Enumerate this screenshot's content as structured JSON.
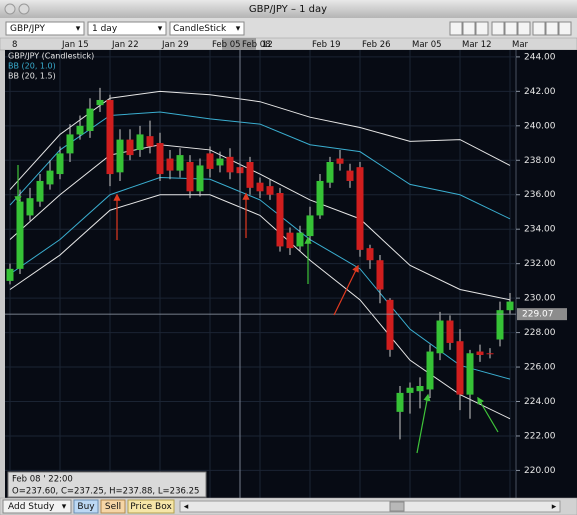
{
  "chart_data": {
    "type": "candlestick",
    "title": "GBP/JPY – 1 day",
    "series_name": "GBP/JPY (Candlestick)",
    "categories": [
      "8",
      null,
      null,
      null,
      null,
      "Jan 15",
      null,
      null,
      null,
      null,
      "Jan 22",
      null,
      null,
      null,
      null,
      "Jan 29",
      null,
      null,
      null,
      null,
      "Feb 05",
      null,
      null,
      "Feb 08",
      null,
      "12",
      null,
      null,
      null,
      null,
      "Feb 19",
      null,
      null,
      null,
      null,
      "Feb 26",
      null,
      null,
      null,
      null,
      "Mar 05",
      null,
      null,
      null,
      null,
      "Mar 12",
      null,
      null,
      null,
      null,
      "Mar"
    ],
    "open": [
      231.0,
      231.7,
      234.8,
      235.6,
      236.6,
      237.2,
      238.4,
      239.5,
      239.7,
      241.2,
      241.5,
      237.3,
      239.2,
      238.6,
      239.4,
      239.0,
      238.1,
      237.4,
      237.9,
      236.2,
      238.4,
      237.7,
      238.2,
      237.6,
      237.9,
      236.7,
      236.5,
      236.1,
      233.8,
      233.0,
      233.6,
      234.8,
      236.7,
      238.1,
      237.4,
      237.6,
      232.9,
      232.2,
      229.9,
      223.4,
      224.5,
      224.6,
      224.7,
      226.8,
      228.7,
      227.5,
      224.4,
      226.9,
      226.8,
      227.6,
      229.3
    ],
    "high": [
      232.0,
      236.3,
      236.4,
      237.2,
      238.0,
      238.8,
      240.1,
      240.6,
      241.6,
      242.2,
      241.8,
      239.8,
      239.8,
      240.0,
      240.3,
      239.6,
      238.6,
      238.7,
      238.3,
      238.1,
      238.8,
      238.5,
      238.7,
      237.88,
      238.2,
      237.0,
      236.9,
      236.4,
      234.1,
      234.2,
      235.3,
      237.2,
      238.2,
      238.6,
      237.8,
      237.9,
      233.1,
      232.5,
      230.0,
      224.9,
      225.1,
      225.4,
      227.3,
      229.2,
      229.0,
      228.2,
      227.0,
      227.3,
      227.1,
      229.8,
      230.3
    ],
    "low": [
      230.8,
      231.4,
      234.5,
      235.3,
      236.3,
      236.9,
      237.9,
      239.2,
      239.3,
      240.8,
      236.5,
      236.8,
      238.0,
      238.2,
      238.4,
      236.8,
      236.9,
      237.0,
      235.8,
      235.9,
      237.0,
      237.3,
      236.9,
      236.25,
      236.0,
      235.8,
      235.7,
      232.7,
      232.5,
      232.7,
      233.2,
      234.6,
      236.4,
      237.4,
      236.4,
      232.4,
      231.7,
      229.7,
      226.6,
      221.8,
      223.3,
      223.6,
      224.2,
      226.4,
      227.0,
      223.5,
      223.0,
      226.3,
      226.5,
      227.2,
      229.1
    ],
    "close": [
      231.7,
      235.6,
      235.8,
      236.8,
      237.4,
      238.4,
      239.5,
      240.0,
      241.0,
      241.5,
      237.2,
      239.2,
      238.3,
      239.5,
      238.8,
      237.2,
      237.4,
      238.3,
      236.2,
      237.7,
      237.5,
      238.1,
      237.3,
      237.25,
      236.4,
      236.2,
      236.0,
      233.0,
      232.9,
      233.8,
      234.8,
      236.8,
      237.9,
      237.8,
      236.8,
      232.8,
      232.2,
      230.5,
      227.0,
      224.5,
      224.8,
      224.9,
      226.9,
      228.7,
      227.4,
      224.4,
      226.8,
      226.7,
      226.8,
      229.3,
      229.8
    ],
    "up_color": "#36c236",
    "down_color": "#d01e1e",
    "ylim": [
      218.4,
      244.4
    ],
    "yticks": [
      {
        "value": 220,
        "label": "220.00"
      },
      {
        "value": 222,
        "label": "222.00"
      },
      {
        "value": 224,
        "label": "224.00"
      },
      {
        "value": 226,
        "label": "226.00"
      },
      {
        "value": 228,
        "label": "228.00"
      },
      {
        "value": 230,
        "label": "230.00"
      },
      {
        "value": 232,
        "label": "232.00"
      },
      {
        "value": 234,
        "label": "234.00"
      },
      {
        "value": 236,
        "label": "236.00"
      },
      {
        "value": 238,
        "label": "238.00"
      },
      {
        "value": 240,
        "label": "240.00"
      },
      {
        "value": 242,
        "label": "242.00"
      },
      {
        "value": 244,
        "label": "244.00"
      }
    ],
    "last_price": 229.07,
    "grid": true,
    "studies": [
      {
        "name": "BB (20, 1.0)",
        "color": "#3aaed0",
        "x": [
          0,
          5,
          10,
          15,
          20,
          25,
          30,
          35,
          40,
          45,
          50
        ],
        "lines": [
          [
            235.4,
            238.6,
            240.6,
            240.8,
            240.4,
            240.1,
            238.9,
            238.5,
            236.6,
            236.0,
            234.6
          ],
          [
            231.4,
            233.4,
            236.0,
            237.0,
            236.9,
            235.7,
            233.4,
            231.7,
            228.2,
            226.1,
            225.3
          ]
        ]
      },
      {
        "name": "BB (20, 1.5)",
        "color": "#e6e6e6",
        "x": [
          0,
          5,
          10,
          15,
          20,
          25,
          30,
          35,
          40,
          45,
          50
        ],
        "lines": [
          [
            236.3,
            239.5,
            241.6,
            242.0,
            241.8,
            241.4,
            240.5,
            239.9,
            239.1,
            239.2,
            237.7
          ],
          [
            233.4,
            236.0,
            238.3,
            238.9,
            238.6,
            237.2,
            235.7,
            234.6,
            231.9,
            230.5,
            229.9
          ],
          [
            230.5,
            232.5,
            235.1,
            236.0,
            236.0,
            234.8,
            232.2,
            229.9,
            226.4,
            224.4,
            223.0
          ]
        ]
      }
    ]
  },
  "ui": {
    "symbol": "GBP/JPY",
    "period": "1 day",
    "chart_style": "CandleStick",
    "info": {
      "time": "Feb 08 ' 22:00",
      "ohlc": "O=237.60, C=237.25, H=237.88, L=236.25"
    },
    "buttons": [
      "Add Study",
      "Buy",
      "Sell",
      "Price Box"
    ]
  }
}
